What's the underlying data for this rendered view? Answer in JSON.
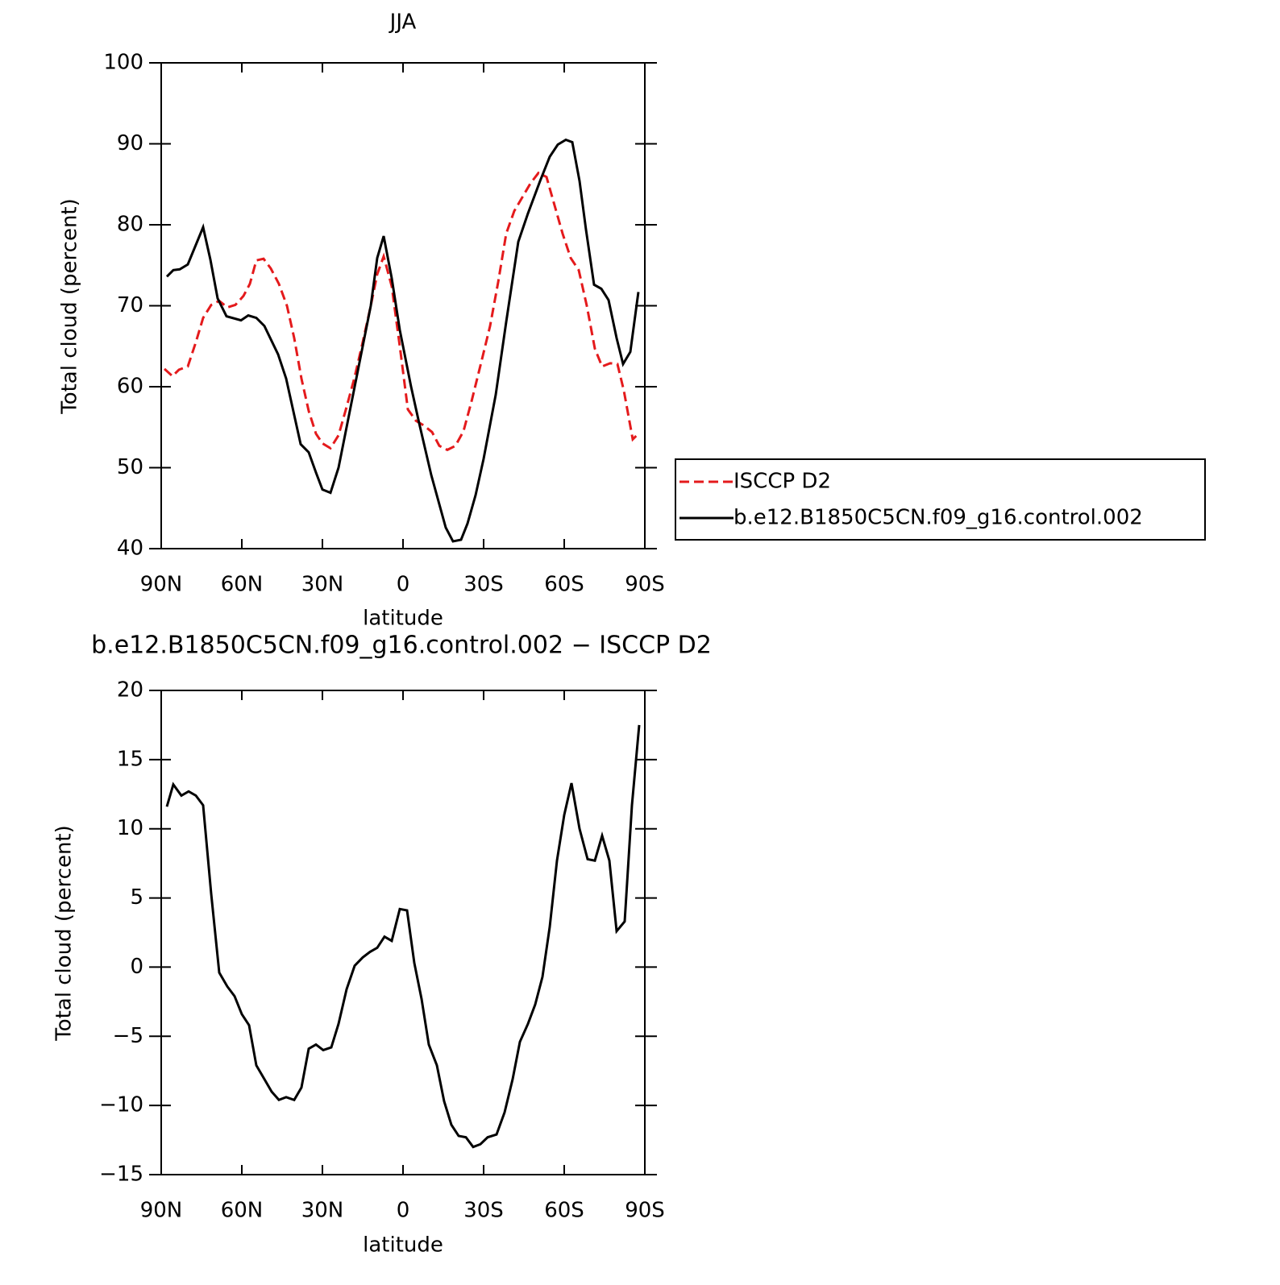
{
  "chart_data": [
    {
      "type": "line",
      "title": "JJA",
      "x_label": "latitude",
      "y_label": "Total cloud (percent)",
      "xlim": [
        90,
        -90
      ],
      "xticks": [
        {
          "value": 90,
          "label": "90N"
        },
        {
          "value": 60,
          "label": "60N"
        },
        {
          "value": 30,
          "label": "30N"
        },
        0,
        {
          "value": -30,
          "label": "30S"
        },
        {
          "value": -60,
          "label": "60S"
        },
        {
          "value": -90,
          "label": "90S"
        }
      ],
      "ylim": [
        40,
        100
      ],
      "yticks": [
        40,
        50,
        60,
        70,
        80,
        90,
        100
      ],
      "legend": "right",
      "series": [
        {
          "name": "ISCCP D2",
          "color": "#e41a1c",
          "line_style": "dashed",
          "x": [
            88.8,
            85.8,
            83.4,
            80.1,
            77.1,
            74.4,
            71.4,
            68.4,
            65.4,
            62.4,
            59.4,
            57,
            54.6,
            51.9,
            49.2,
            46.2,
            43.2,
            40.5,
            37.8,
            35.1,
            32.4,
            30,
            27,
            24,
            21,
            18,
            15,
            12,
            9.6,
            7.2,
            4.2,
            1.2,
            -1.8,
            -4.8,
            -7.8,
            -10.8,
            -13.5,
            -16.5,
            -19.5,
            -22.5,
            -25.5,
            -29.1,
            -32.4,
            -35.4,
            -38.4,
            -41.4,
            -44.4,
            -47.4,
            -50.4,
            -53.4,
            -56.4,
            -59.4,
            -62.4,
            -65.4,
            -68.4,
            -71.4,
            -74.1,
            -77.1,
            -79.8,
            -82.2,
            -85.5,
            -87.9
          ],
          "values": [
            62.2,
            61.3,
            62.1,
            62.5,
            65.5,
            68.5,
            70.1,
            70.6,
            69.8,
            70.1,
            71.2,
            72.7,
            75.6,
            75.8,
            74.6,
            72.7,
            70.0,
            66.0,
            61.0,
            57.0,
            54.2,
            53.0,
            52.4,
            54.0,
            57.5,
            61.2,
            65.5,
            70.0,
            73.9,
            76.1,
            72.4,
            65.0,
            57.2,
            55.8,
            55.2,
            54.4,
            52.7,
            52.2,
            52.7,
            54.5,
            58.2,
            63.0,
            67.5,
            72.9,
            78.9,
            81.7,
            83.4,
            85.1,
            86.4,
            85.9,
            82.4,
            78.9,
            75.9,
            74.4,
            70.0,
            64.7,
            62.5,
            62.9,
            62.8,
            59.5,
            53.5,
            54.3
          ]
        },
        {
          "name": "b.e12.B1850C5CN.f09_g16.control.002",
          "color": "#000000",
          "line_style": "solid",
          "x": [
            87.9,
            85.5,
            83.1,
            80.1,
            74.4,
            71.7,
            69,
            65.7,
            60.3,
            57.6,
            54.6,
            51.6,
            46.5,
            43.5,
            40.5,
            38.1,
            35.1,
            32.4,
            30,
            27,
            24,
            21,
            18,
            15,
            12,
            9.6,
            7.2,
            4.2,
            1.2,
            -3,
            -6,
            -10.5,
            -15.9,
            -18.6,
            -21.6,
            -24,
            -27,
            -30,
            -34.5,
            -38.4,
            -42.9,
            -46.5,
            -51,
            -54.6,
            -57.6,
            -60.6,
            -63,
            -65.7,
            -68.1,
            -71.1,
            -73.8,
            -76.5,
            -79.5,
            -81.9,
            -84.6,
            -87.6
          ],
          "values": [
            73.6,
            74.4,
            74.5,
            75.1,
            79.7,
            75.7,
            70.9,
            68.7,
            68.2,
            68.8,
            68.5,
            67.5,
            64.0,
            61.0,
            56.5,
            52.9,
            51.9,
            49.4,
            47.3,
            46.9,
            50.0,
            55.0,
            60.0,
            65.0,
            70.0,
            75.9,
            78.6,
            73.4,
            67.0,
            60.0,
            55.5,
            49.1,
            42.6,
            40.9,
            41.1,
            43.1,
            46.6,
            51.1,
            59.0,
            68.0,
            77.9,
            81.4,
            85.4,
            88.4,
            89.9,
            90.5,
            90.2,
            85.4,
            79.4,
            72.6,
            72.1,
            70.7,
            66.0,
            62.8,
            64.3,
            71.7
          ]
        }
      ]
    },
    {
      "type": "line",
      "title": "b.e12.B1850C5CN.f09_g16.control.002 − ISCCP D2",
      "x_label": "latitude",
      "y_label": "Total cloud (percent)",
      "xlim": [
        90,
        -90
      ],
      "xticks": [
        {
          "value": 90,
          "label": "90N"
        },
        {
          "value": 60,
          "label": "60N"
        },
        {
          "value": 30,
          "label": "30N"
        },
        0,
        {
          "value": -30,
          "label": "30S"
        },
        {
          "value": -60,
          "label": "60S"
        },
        {
          "value": -90,
          "label": "90S"
        }
      ],
      "ylim": [
        -15,
        20
      ],
      "yticks": [
        {
          "value": -15,
          "label": "−15"
        },
        {
          "value": -10,
          "label": "−10"
        },
        {
          "value": -5,
          "label": "−5"
        },
        0,
        5,
        10,
        15,
        20
      ],
      "series": [
        {
          "color": "#000000",
          "line_style": "solid",
          "x": [
            87.9,
            85.5,
            82.5,
            79.8,
            77.1,
            74.4,
            71.4,
            68.4,
            65.4,
            62.7,
            60,
            57.3,
            54.6,
            51.6,
            48.9,
            46.2,
            43.5,
            40.5,
            37.8,
            35.1,
            32.4,
            29.7,
            26.7,
            24,
            21,
            18,
            15,
            12.3,
            9.6,
            6.9,
            4.2,
            1.2,
            -1.5,
            -4.2,
            -6.9,
            -9.6,
            -12.6,
            -15.3,
            -18,
            -20.7,
            -23.4,
            -26.1,
            -28.8,
            -31.5,
            -34.8,
            -37.8,
            -40.8,
            -43.5,
            -46.5,
            -49.2,
            -51.9,
            -54.6,
            -57.3,
            -60,
            -62.7,
            -65.7,
            -68.7,
            -71.4,
            -74.1,
            -76.8,
            -79.5,
            -82.5,
            -85.2,
            -87.9
          ],
          "values": [
            11.6,
            13.2,
            12.4,
            12.7,
            12.4,
            11.7,
            5.3,
            -0.4,
            -1.4,
            -2.1,
            -3.4,
            -4.2,
            -7.1,
            -8.1,
            -9.0,
            -9.6,
            -9.4,
            -9.6,
            -8.7,
            -5.9,
            -5.6,
            -6.0,
            -5.8,
            -4.1,
            -1.6,
            0.1,
            0.7,
            1.1,
            1.4,
            2.2,
            1.9,
            4.2,
            4.1,
            0.3,
            -2.3,
            -5.6,
            -7.1,
            -9.7,
            -11.4,
            -12.2,
            -12.3,
            -13.0,
            -12.8,
            -12.3,
            -12.1,
            -10.5,
            -8.1,
            -5.4,
            -4.1,
            -2.7,
            -0.7,
            2.9,
            7.7,
            11.0,
            13.3,
            10.0,
            7.8,
            7.7,
            9.5,
            7.7,
            2.6,
            3.3,
            11.7,
            17.5
          ]
        }
      ]
    }
  ]
}
